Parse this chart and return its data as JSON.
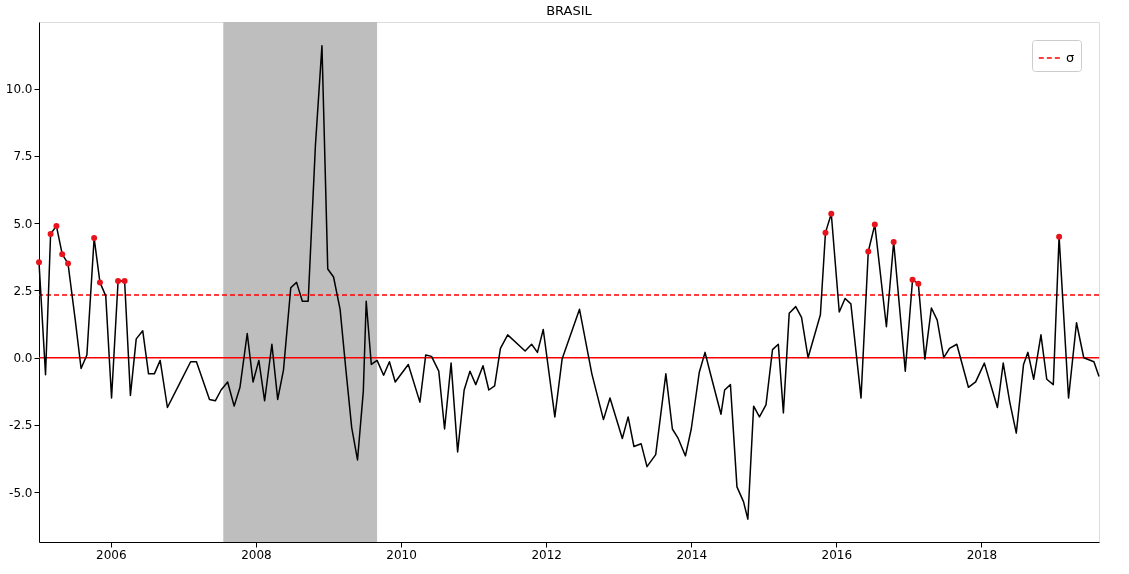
{
  "chart_data": {
    "type": "line",
    "title": "BRASIL",
    "xlim": [
      2005.01,
      2019.62
    ],
    "xticks": [
      2006,
      2008,
      2010,
      2012,
      2014,
      2016,
      2018
    ],
    "ylim": [
      -6.85,
      12.48
    ],
    "yticks": [
      {
        "value": -5,
        "label": "-5.0"
      },
      {
        "value": -2.5,
        "label": "-2.5"
      },
      {
        "value": 0,
        "label": "0.0"
      },
      {
        "value": 2.5,
        "label": "2.5"
      },
      {
        "value": 5,
        "label": "5.0"
      },
      {
        "value": 7.5,
        "label": "7.5"
      },
      {
        "value": 10,
        "label": "10.0"
      }
    ],
    "grid": false,
    "legend": "top right",
    "series": [
      {
        "color": "#000000",
        "marker": "none",
        "line_style": "solid",
        "x": [
          2005.01,
          2005.1,
          2005.17,
          2005.25,
          2005.33,
          2005.41,
          2005.51,
          2005.59,
          2005.67,
          2005.77,
          2005.85,
          2005.93,
          2006.01,
          2006.1,
          2006.19,
          2006.27,
          2006.35,
          2006.44,
          2006.52,
          2006.6,
          2006.68,
          2006.78,
          2006.94,
          2007.1,
          2007.18,
          2007.36,
          2007.44,
          2007.52,
          2007.61,
          2007.7,
          2007.78,
          2007.88,
          2007.96,
          2008.04,
          2008.12,
          2008.22,
          2008.3,
          2008.38,
          2008.48,
          2008.56,
          2008.64,
          2008.72,
          2008.82,
          2008.91,
          2008.99,
          2009.07,
          2009.16,
          2009.24,
          2009.32,
          2009.4,
          2009.48,
          2009.52,
          2009.59,
          2009.67,
          2009.76,
          2009.84,
          2009.92,
          2010.1,
          2010.26,
          2010.34,
          2010.42,
          2010.52,
          2010.6,
          2010.69,
          2010.78,
          2010.87,
          2010.95,
          2011.03,
          2011.13,
          2011.21,
          2011.29,
          2011.37,
          2011.47,
          2011.71,
          2011.8,
          2011.88,
          2011.96,
          2012.12,
          2012.22,
          2012.46,
          2012.63,
          2012.79,
          2012.88,
          2013.05,
          2013.13,
          2013.21,
          2013.31,
          2013.39,
          2013.51,
          2013.65,
          2013.74,
          2013.82,
          2013.92,
          2014.0,
          2014.11,
          2014.19,
          2014.26,
          2014.41,
          2014.46,
          2014.54,
          2014.63,
          2014.72,
          2014.78,
          2014.86,
          2014.94,
          2015.03,
          2015.12,
          2015.2,
          2015.27,
          2015.35,
          2015.44,
          2015.52,
          2015.61,
          2015.78,
          2015.85,
          2015.93,
          2016.04,
          2016.12,
          2016.2,
          2016.34,
          2016.44,
          2016.53,
          2016.69,
          2016.79,
          2016.95,
          2017.05,
          2017.13,
          2017.22,
          2017.31,
          2017.39,
          2017.48,
          2017.56,
          2017.66,
          2017.82,
          2017.92,
          2018.04,
          2018.22,
          2018.3,
          2018.39,
          2018.48,
          2018.58,
          2018.64,
          2018.72,
          2018.82,
          2018.9,
          2018.99,
          2019.07,
          2019.2,
          2019.31,
          2019.41,
          2019.55,
          2019.62
        ],
        "values": [
          3.55,
          -0.63,
          4.6,
          4.9,
          3.85,
          3.5,
          1.4,
          -0.4,
          0.1,
          4.45,
          2.8,
          2.3,
          -1.5,
          2.85,
          2.85,
          -1.4,
          0.7,
          1.0,
          -0.6,
          -0.6,
          -0.1,
          -1.85,
          -1.0,
          -0.15,
          -0.15,
          -1.55,
          -1.6,
          -1.2,
          -0.9,
          -1.8,
          -1.1,
          0.9,
          -0.9,
          -0.1,
          -1.6,
          0.5,
          -1.55,
          -0.45,
          2.6,
          2.8,
          2.1,
          2.1,
          7.9,
          11.6,
          3.3,
          3.0,
          1.8,
          -0.45,
          -2.6,
          -3.8,
          -1.25,
          2.1,
          -0.25,
          -0.1,
          -0.65,
          -0.15,
          -0.9,
          -0.25,
          -1.65,
          0.1,
          0.05,
          -0.5,
          -2.65,
          -0.2,
          -3.5,
          -1.2,
          -0.5,
          -1.0,
          -0.3,
          -1.2,
          -1.05,
          0.35,
          0.85,
          0.25,
          0.5,
          0.2,
          1.05,
          -2.2,
          -0.05,
          1.8,
          -0.6,
          -2.3,
          -1.5,
          -3.0,
          -2.2,
          -3.3,
          -3.2,
          -4.05,
          -3.6,
          -0.6,
          -2.65,
          -3.0,
          -3.65,
          -2.65,
          -0.55,
          0.2,
          -0.55,
          -2.1,
          -1.2,
          -1.0,
          -4.8,
          -5.35,
          -6.0,
          -1.8,
          -2.2,
          -1.75,
          0.3,
          0.5,
          -2.05,
          1.65,
          1.9,
          1.5,
          0.0,
          1.6,
          4.65,
          5.35,
          1.7,
          2.2,
          2.0,
          -1.5,
          3.95,
          4.95,
          1.15,
          4.3,
          -0.5,
          2.9,
          2.75,
          -0.05,
          1.85,
          1.4,
          0.0,
          0.35,
          0.5,
          -1.1,
          -0.9,
          -0.2,
          -1.85,
          -0.2,
          -1.65,
          -2.8,
          -0.25,
          0.2,
          -0.8,
          0.85,
          -0.8,
          -1.0,
          4.5,
          -1.5,
          1.3,
          0.0,
          -0.15,
          -0.7
        ]
      },
      {
        "type": "scatter",
        "color": "#e8141c",
        "marker": "circle",
        "x": [
          2005.01,
          2005.17,
          2005.25,
          2005.33,
          2005.41,
          2005.77,
          2005.85,
          2006.1,
          2006.19,
          2015.85,
          2015.93,
          2016.44,
          2016.53,
          2016.79,
          2017.05,
          2017.13,
          2019.07
        ],
        "values": [
          3.55,
          4.6,
          4.9,
          3.85,
          3.5,
          4.45,
          2.8,
          2.85,
          2.85,
          4.65,
          5.35,
          3.95,
          4.95,
          4.3,
          2.9,
          2.75,
          4.5
        ]
      }
    ],
    "ref_lines": [
      {
        "axis": "y",
        "value": 0,
        "color": "#ff0000",
        "line_style": "solid"
      },
      {
        "axis": "y",
        "value": 2.33,
        "label": "σ",
        "color": "#ff0000",
        "line_style": "dashed"
      }
    ],
    "bands": [
      {
        "axis": "x",
        "from": 2007.55,
        "to": 2009.67,
        "color": "#bebebe"
      }
    ]
  }
}
